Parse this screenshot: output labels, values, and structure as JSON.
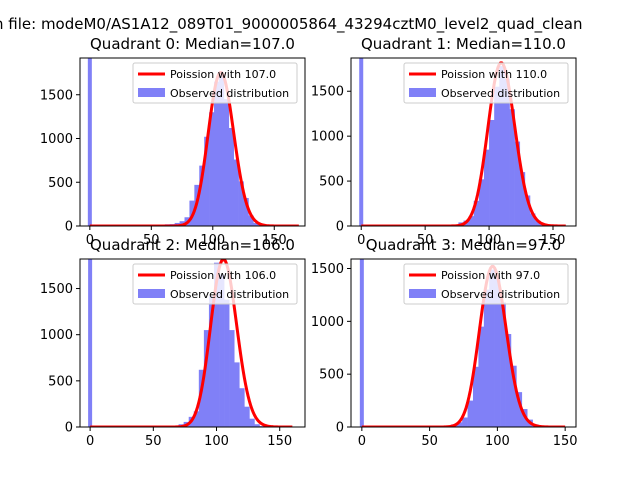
{
  "figure": {
    "suptitle": "n file: modeM0/AS1A12_089T01_9000005864_43294cztM0_level2_quad_clean"
  },
  "chart_data": [
    {
      "type": "bar",
      "title": "Quadrant 0: Median=107.0",
      "xlim": [
        -8,
        175
      ],
      "ylim": [
        0,
        1920
      ],
      "xticks": [
        0,
        50,
        100,
        150
      ],
      "yticks": [
        0,
        500,
        1000,
        1500
      ],
      "spike": {
        "x": 0,
        "value": 1920
      },
      "observed": {
        "name": "Observed distribution",
        "color": "#8080f7",
        "bin_start": 57,
        "bin_width": 4,
        "values": [
          5,
          20,
          22,
          35,
          55,
          100,
          290,
          470,
          690,
          1020,
          1300,
          1650,
          1720,
          1450,
          1120,
          760,
          510,
          320,
          120,
          35,
          12,
          6
        ]
      },
      "poisson": {
        "name": "Poission with 107.0",
        "mu": 107,
        "color": "#ff0000",
        "x_range": [
          0,
          170
        ]
      },
      "legend": "top-right"
    },
    {
      "type": "bar",
      "title": "Quadrant 1: Median=110.0",
      "xlim": [
        -8,
        168
      ],
      "ylim": [
        0,
        1870
      ],
      "xticks": [
        0,
        50,
        100,
        150
      ],
      "yticks": [
        0,
        500,
        1000,
        1500
      ],
      "spike": {
        "x": 0,
        "value": 1870
      },
      "observed": {
        "name": "Observed distribution",
        "color": "#8080f7",
        "bin_start": 72,
        "bin_width": 4,
        "values": [
          15,
          40,
          60,
          110,
          280,
          520,
          850,
          1180,
          1550,
          1780,
          1640,
          1300,
          940,
          600,
          340,
          140,
          60,
          20
        ]
      },
      "poisson": {
        "name": "Poission with 110.0",
        "mu": 110,
        "color": "#ff0000",
        "x_range": [
          0,
          160
        ]
      },
      "legend": "top-right"
    },
    {
      "type": "bar",
      "title": "Quadrant 2: Median=106.0",
      "xlim": [
        -8,
        170
      ],
      "ylim": [
        0,
        1820
      ],
      "xticks": [
        0,
        50,
        100,
        150
      ],
      "yticks": [
        0,
        500,
        1000,
        1500
      ],
      "spike": {
        "x": 0,
        "value": 1820
      },
      "observed": {
        "name": "Observed distribution",
        "color": "#8080f7",
        "bin_start": 66,
        "bin_width": 4,
        "values": [
          10,
          30,
          55,
          110,
          170,
          620,
          1050,
          1420,
          1780,
          1650,
          1380,
          1050,
          700,
          420,
          220,
          90,
          30,
          10
        ]
      },
      "poisson": {
        "name": "Poission with 106.0",
        "mu": 106,
        "color": "#ff0000",
        "x_range": [
          0,
          160
        ]
      },
      "legend": "top-right"
    },
    {
      "type": "bar",
      "title": "Quadrant 3: Median=97.0",
      "xlim": [
        -8,
        158
      ],
      "ylim": [
        0,
        1590
      ],
      "xticks": [
        0,
        50,
        100,
        150
      ],
      "yticks": [
        0,
        500,
        1000,
        1500
      ],
      "spike": {
        "x": 0,
        "value": 1590
      },
      "observed": {
        "name": "Observed distribution",
        "color": "#8080f7",
        "bin_start": 62,
        "bin_width": 4,
        "values": [
          5,
          25,
          45,
          90,
          250,
          570,
          950,
          1300,
          1490,
          1420,
          1180,
          880,
          580,
          330,
          170,
          70,
          25,
          10
        ]
      },
      "poisson": {
        "name": "Poission with 97.0",
        "mu": 97,
        "color": "#ff0000",
        "x_range": [
          0,
          150
        ]
      },
      "legend": "top-right"
    }
  ]
}
